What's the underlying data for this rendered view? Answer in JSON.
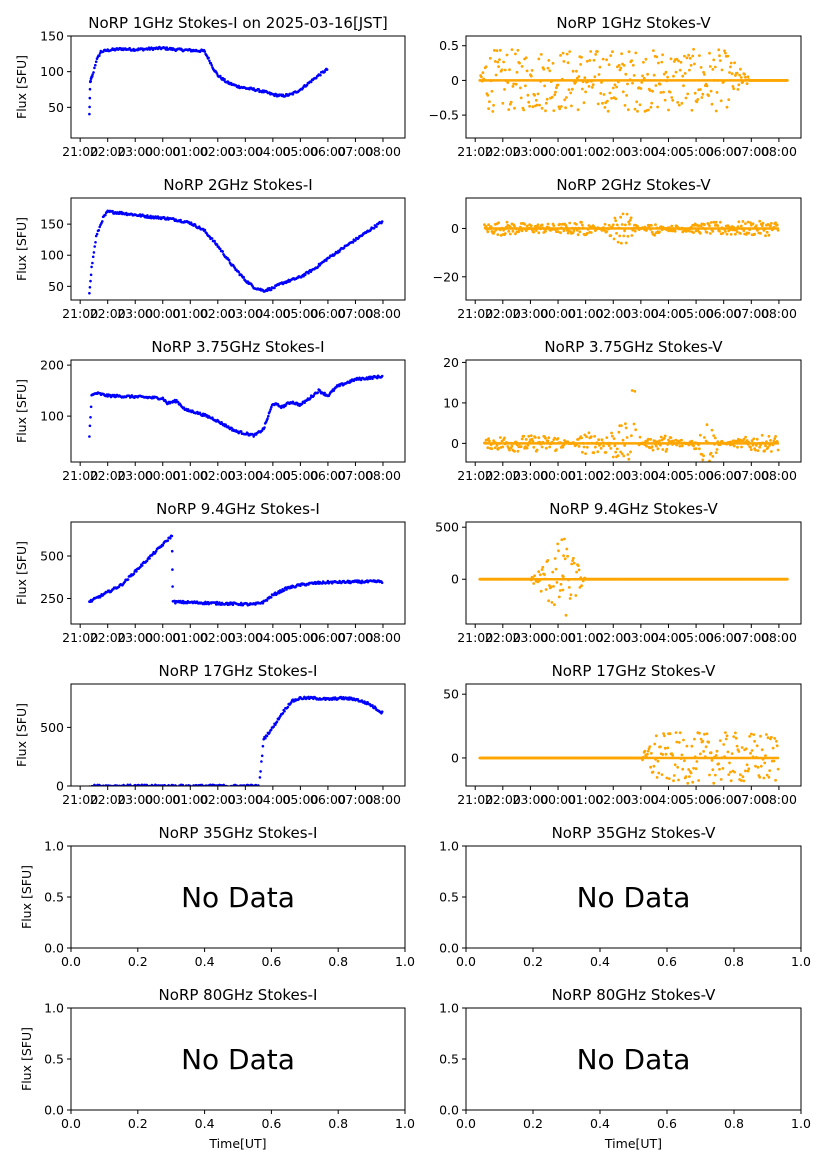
{
  "figure": {
    "xlabel": "Time[UT]",
    "ylabel": "Flux [SFU]",
    "colors": {
      "stokes_i": "#0000ff",
      "stokes_v": "#ffa500"
    }
  },
  "chart_data": [
    {
      "type": "scatter",
      "title": "NoRP 1GHz Stokes-I on 2025-03-16[JST]",
      "xlabel": "",
      "ylabel": "Flux [SFU]",
      "x_ticks": [
        "21:00",
        "22:00",
        "23:00",
        "00:00",
        "01:00",
        "02:00",
        "03:00",
        "04:00",
        "05:00",
        "06:00",
        "07:00",
        "08:00"
      ],
      "xlim": [
        "20:40",
        "08:48"
      ],
      "ylim": [
        7,
        150
      ],
      "y_ticks": [
        50,
        100,
        150
      ],
      "color": "#0000ff",
      "series": [
        {
          "x": [
            "21:20",
            "21:22",
            "21:24",
            "21:27",
            "21:35",
            "21:45",
            "22:00",
            "22:30",
            "23:00",
            "23:30",
            "00:00",
            "00:30",
            "01:00",
            "01:30",
            "01:40",
            "01:50",
            "02:00",
            "02:20",
            "02:40",
            "03:00",
            "03:20",
            "03:40",
            "04:00",
            "04:20",
            "04:40",
            "05:00",
            "05:20",
            "05:40",
            "06:00"
          ],
          "y": [
            40,
            85,
            90,
            95,
            115,
            128,
            130,
            132,
            131,
            132,
            133,
            131,
            130,
            129,
            118,
            105,
            95,
            85,
            80,
            77,
            75,
            72,
            68,
            66,
            68,
            75,
            85,
            95,
            104
          ]
        }
      ]
    },
    {
      "type": "scatter",
      "title": "NoRP 1GHz Stokes-V",
      "xlabel": "",
      "ylabel": "",
      "x_ticks": [
        "21:00",
        "22:00",
        "23:00",
        "00:00",
        "01:00",
        "02:00",
        "03:00",
        "04:00",
        "05:00",
        "06:00",
        "07:00",
        "08:00"
      ],
      "xlim": [
        "20:40",
        "08:48"
      ],
      "ylim": [
        -0.83,
        0.64
      ],
      "y_ticks": [
        -0.5,
        0.0,
        0.5
      ],
      "color": "#ffa500",
      "series": [
        {
          "x": [
            "21:10",
            "21:20",
            "22:00",
            "23:00",
            "00:00",
            "01:00",
            "02:00",
            "03:00",
            "04:00",
            "05:00",
            "06:00",
            "07:00",
            "08:00",
            "08:20"
          ],
          "y": [
            0,
            0.45,
            0.45,
            0.45,
            0.45,
            0.45,
            0.45,
            0.45,
            0.45,
            0.45,
            0.45,
            0,
            0,
            0
          ]
        }
      ]
    },
    {
      "type": "scatter",
      "title": "NoRP 2GHz Stokes-I",
      "xlabel": "",
      "ylabel": "Flux [SFU]",
      "x_ticks": [
        "21:00",
        "22:00",
        "23:00",
        "00:00",
        "01:00",
        "02:00",
        "03:00",
        "04:00",
        "05:00",
        "06:00",
        "07:00",
        "08:00"
      ],
      "xlim": [
        "20:40",
        "08:48"
      ],
      "ylim": [
        28,
        192
      ],
      "y_ticks": [
        50,
        100,
        150
      ],
      "color": "#0000ff",
      "series": [
        {
          "x": [
            "21:20",
            "21:25",
            "21:35",
            "21:50",
            "22:00",
            "22:30",
            "23:00",
            "23:30",
            "00:00",
            "00:30",
            "01:00",
            "01:30",
            "02:00",
            "02:30",
            "03:00",
            "03:20",
            "03:40",
            "04:00",
            "04:20",
            "04:40",
            "05:00",
            "05:30",
            "06:00",
            "06:30",
            "07:00",
            "07:30",
            "08:00"
          ],
          "y": [
            40,
            80,
            130,
            160,
            170,
            168,
            165,
            162,
            160,
            157,
            152,
            140,
            115,
            85,
            60,
            48,
            43,
            47,
            55,
            60,
            65,
            78,
            95,
            110,
            125,
            140,
            155
          ]
        }
      ]
    },
    {
      "type": "scatter",
      "title": "NoRP 2GHz Stokes-V",
      "xlabel": "",
      "ylabel": "",
      "x_ticks": [
        "21:00",
        "22:00",
        "23:00",
        "00:00",
        "01:00",
        "02:00",
        "03:00",
        "04:00",
        "05:00",
        "06:00",
        "07:00",
        "08:00"
      ],
      "xlim": [
        "20:40",
        "08:48"
      ],
      "ylim": [
        -29.6,
        12.6
      ],
      "y_ticks": [
        -20,
        0
      ],
      "color": "#ffa500",
      "series": [
        {
          "x": [
            "21:20",
            "22:00",
            "23:00",
            "00:00",
            "01:00",
            "01:30",
            "02:00",
            "02:30",
            "03:00",
            "03:30",
            "04:00",
            "05:00",
            "06:00",
            "07:00",
            "08:00"
          ],
          "y": [
            -2,
            -3,
            -2,
            -2,
            -3,
            0,
            5,
            7,
            0,
            3,
            -1,
            -2,
            -3,
            -3,
            -3
          ]
        }
      ]
    },
    {
      "type": "scatter",
      "title": "NoRP 3.75GHz Stokes-I",
      "xlabel": "",
      "ylabel": "Flux [SFU]",
      "x_ticks": [
        "21:00",
        "22:00",
        "23:00",
        "00:00",
        "01:00",
        "02:00",
        "03:00",
        "04:00",
        "05:00",
        "06:00",
        "07:00",
        "08:00"
      ],
      "xlim": [
        "20:40",
        "08:48"
      ],
      "ylim": [
        10,
        210
      ],
      "y_ticks": [
        100,
        200
      ],
      "color": "#0000ff",
      "series": [
        {
          "x": [
            "21:20",
            "21:25",
            "21:35",
            "22:00",
            "23:00",
            "00:00",
            "00:10",
            "00:30",
            "00:50",
            "01:10",
            "01:30",
            "01:50",
            "02:10",
            "02:30",
            "02:40",
            "03:20",
            "03:40",
            "03:50",
            "04:00",
            "04:20",
            "04:40",
            "05:00",
            "05:20",
            "05:40",
            "06:00",
            "06:20",
            "06:40",
            "07:00",
            "07:30",
            "08:00"
          ],
          "y": [
            60,
            140,
            145,
            140,
            138,
            135,
            125,
            130,
            112,
            108,
            102,
            95,
            85,
            75,
            70,
            62,
            75,
            100,
            125,
            118,
            128,
            122,
            135,
            150,
            140,
            158,
            165,
            172,
            175,
            178
          ]
        }
      ]
    },
    {
      "type": "scatter",
      "title": "NoRP 3.75GHz Stokes-V",
      "xlabel": "",
      "ylabel": "",
      "x_ticks": [
        "21:00",
        "22:00",
        "23:00",
        "00:00",
        "01:00",
        "02:00",
        "03:00",
        "04:00",
        "05:00",
        "06:00",
        "07:00",
        "08:00"
      ],
      "xlim": [
        "20:40",
        "08:48"
      ],
      "ylim": [
        -4.6,
        20.6
      ],
      "y_ticks": [
        0,
        10,
        20
      ],
      "color": "#ffa500",
      "series": [
        {
          "x": [
            "21:20",
            "22:00",
            "23:00",
            "00:00",
            "00:30",
            "01:00",
            "01:30",
            "02:00",
            "02:30",
            "02:45",
            "03:00",
            "03:30",
            "04:00",
            "04:30",
            "05:00",
            "05:20",
            "05:40",
            "06:00",
            "06:30",
            "07:00",
            "08:00"
          ],
          "y": [
            1,
            2,
            2,
            2,
            0,
            3,
            2,
            4,
            5,
            18,
            0,
            2,
            2,
            1,
            -2,
            8,
            3,
            0,
            1,
            2,
            2
          ]
        }
      ]
    },
    {
      "type": "scatter",
      "title": "NoRP 9.4GHz Stokes-I",
      "xlabel": "",
      "ylabel": "Flux [SFU]",
      "x_ticks": [
        "21:00",
        "22:00",
        "23:00",
        "00:00",
        "01:00",
        "02:00",
        "03:00",
        "04:00",
        "05:00",
        "06:00",
        "07:00",
        "08:00"
      ],
      "xlim": [
        "20:40",
        "08:48"
      ],
      "ylim": [
        100,
        700
      ],
      "y_ticks": [
        250,
        500
      ],
      "color": "#0000ff",
      "series": [
        {
          "x": [
            "21:20",
            "22:30",
            "00:20",
            "00:22",
            "03:20",
            "03:40",
            "04:00",
            "04:30",
            "05:00",
            "05:30",
            "06:00",
            "07:00",
            "08:00"
          ],
          "y": [
            230,
            330,
            620,
            230,
            215,
            230,
            270,
            310,
            330,
            340,
            345,
            348,
            350
          ]
        }
      ]
    },
    {
      "type": "scatter",
      "title": "NoRP 9.4GHz Stokes-V",
      "xlabel": "",
      "ylabel": "",
      "x_ticks": [
        "21:00",
        "22:00",
        "23:00",
        "00:00",
        "01:00",
        "02:00",
        "03:00",
        "04:00",
        "05:00",
        "06:00",
        "07:00",
        "08:00"
      ],
      "xlim": [
        "20:40",
        "08:48"
      ],
      "ylim": [
        -430,
        550
      ],
      "y_ticks": [
        0,
        500
      ],
      "color": "#ffa500",
      "series": [
        {
          "x": [
            "21:10",
            "22:00",
            "23:00",
            "00:10",
            "00:12",
            "01:00",
            "02:00",
            "03:00",
            "04:00",
            "05:00",
            "06:00",
            "07:00",
            "08:00",
            "08:20"
          ],
          "y": [
            0,
            0,
            0,
            420,
            -420,
            0,
            0,
            0,
            0,
            0,
            0,
            0,
            0,
            0
          ]
        }
      ]
    },
    {
      "type": "scatter",
      "title": "NoRP 17GHz Stokes-I",
      "xlabel": "",
      "ylabel": "Flux [SFU]",
      "x_ticks": [
        "21:00",
        "22:00",
        "23:00",
        "00:00",
        "01:00",
        "02:00",
        "03:00",
        "04:00",
        "05:00",
        "06:00",
        "07:00",
        "08:00"
      ],
      "xlim": [
        "20:40",
        "08:48"
      ],
      "ylim": [
        0,
        870
      ],
      "y_ticks": [
        0,
        500
      ],
      "color": "#0000ff",
      "series": [
        {
          "x": [
            "21:20",
            "22:00",
            "23:00",
            "00:00",
            "01:00",
            "02:00",
            "03:00",
            "03:30",
            "03:40",
            "04:00",
            "04:20",
            "04:40",
            "05:00",
            "05:30",
            "06:00",
            "06:30",
            "07:00",
            "07:30",
            "08:00"
          ],
          "y": [
            0,
            0,
            0,
            0,
            0,
            0,
            0,
            0,
            400,
            500,
            620,
            720,
            750,
            750,
            740,
            750,
            740,
            700,
            620
          ]
        }
      ]
    },
    {
      "type": "scatter",
      "title": "NoRP 17GHz Stokes-V",
      "xlabel": "",
      "ylabel": "",
      "x_ticks": [
        "21:00",
        "22:00",
        "23:00",
        "00:00",
        "01:00",
        "02:00",
        "03:00",
        "04:00",
        "05:00",
        "06:00",
        "07:00",
        "08:00"
      ],
      "xlim": [
        "20:40",
        "08:48"
      ],
      "ylim": [
        -22,
        58
      ],
      "y_ticks": [
        0,
        50
      ],
      "color": "#ffa500",
      "series": [
        {
          "x": [
            "21:10",
            "22:00",
            "23:00",
            "00:00",
            "01:00",
            "02:00",
            "03:00",
            "03:30",
            "04:00",
            "05:00",
            "06:00",
            "07:00",
            "08:00"
          ],
          "y": [
            0,
            0,
            0,
            0,
            0,
            0,
            0,
            20,
            20,
            20,
            20,
            20,
            20
          ]
        }
      ]
    },
    {
      "type": "scatter",
      "title": "NoRP 35GHz Stokes-I",
      "xlabel": "",
      "ylabel": "Flux [SFU]",
      "xlim": [
        0,
        1
      ],
      "ylim": [
        0,
        1
      ],
      "x_ticks": [
        "0.0",
        "0.2",
        "0.4",
        "0.6",
        "0.8",
        "1.0"
      ],
      "y_ticks": [
        "0.0",
        "0.5",
        "1.0"
      ],
      "message": "No Data"
    },
    {
      "type": "scatter",
      "title": "NoRP 35GHz Stokes-V",
      "xlabel": "",
      "ylabel": "",
      "xlim": [
        0,
        1
      ],
      "ylim": [
        0,
        1
      ],
      "x_ticks": [
        "0.0",
        "0.2",
        "0.4",
        "0.6",
        "0.8",
        "1.0"
      ],
      "y_ticks": [
        "0.0",
        "0.5",
        "1.0"
      ],
      "message": "No Data"
    },
    {
      "type": "scatter",
      "title": "NoRP 80GHz Stokes-I",
      "xlabel": "Time[UT]",
      "ylabel": "Flux [SFU]",
      "xlim": [
        0,
        1
      ],
      "ylim": [
        0,
        1
      ],
      "x_ticks": [
        "0.0",
        "0.2",
        "0.4",
        "0.6",
        "0.8",
        "1.0"
      ],
      "y_ticks": [
        "0.0",
        "0.5",
        "1.0"
      ],
      "message": "No Data"
    },
    {
      "type": "scatter",
      "title": "NoRP 80GHz Stokes-V",
      "xlabel": "Time[UT]",
      "ylabel": "",
      "xlim": [
        0,
        1
      ],
      "ylim": [
        0,
        1
      ],
      "x_ticks": [
        "0.0",
        "0.2",
        "0.4",
        "0.6",
        "0.8",
        "1.0"
      ],
      "y_ticks": [
        "0.0",
        "0.5",
        "1.0"
      ],
      "message": "No Data"
    }
  ]
}
